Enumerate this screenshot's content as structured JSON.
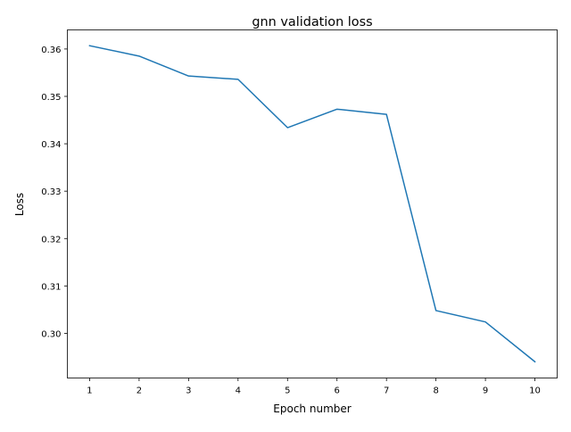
{
  "chart_data": {
    "type": "line",
    "title": "gnn validation loss",
    "xlabel": "Epoch number",
    "ylabel": "Loss",
    "x": [
      1,
      2,
      3,
      4,
      5,
      6,
      7,
      8,
      9,
      10
    ],
    "x_ticks": [
      "1",
      "2",
      "3",
      "4",
      "5",
      "6",
      "7",
      "8",
      "9",
      "10"
    ],
    "y_ticks": [
      "0.30",
      "0.31",
      "0.32",
      "0.33",
      "0.34",
      "0.35",
      "0.36"
    ],
    "y_tick_values": [
      0.3,
      0.31,
      0.32,
      0.33,
      0.34,
      0.35,
      0.36
    ],
    "series": [
      {
        "values": [
          0.3607,
          0.3585,
          0.3543,
          0.3536,
          0.3434,
          0.3473,
          0.3462,
          0.3048,
          0.3024,
          0.294
        ],
        "color": "#1f77b4"
      }
    ],
    "xlim": [
      0.55,
      10.45
    ],
    "ylim": [
      0.29057,
      0.36403
    ],
    "grid": false,
    "legend": false
  }
}
